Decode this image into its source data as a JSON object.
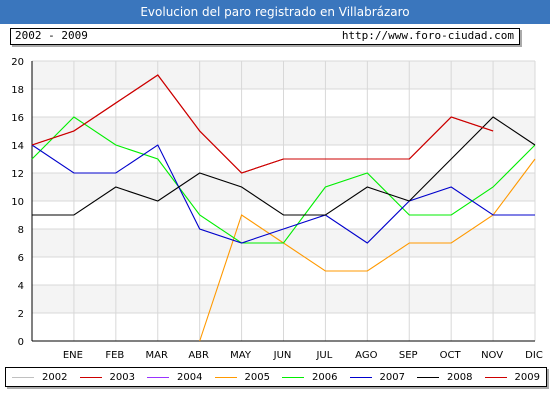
{
  "header": {
    "title": "Evolucion del paro registrado en Villabrázaro",
    "period": "2002 - 2009",
    "url": "http://www.foro-ciudad.com"
  },
  "chart_data": {
    "type": "line",
    "title": "Evolucion del paro registrado en Villabrázaro",
    "categories": [
      "ENE",
      "FEB",
      "MAR",
      "ABR",
      "MAY",
      "JUN",
      "JUL",
      "AGO",
      "SEP",
      "OCT",
      "NOV",
      "DIC"
    ],
    "y_ticks": [
      "0",
      "2",
      "4",
      "6",
      "8",
      "10",
      "12",
      "14",
      "16",
      "18",
      "20"
    ],
    "ylim": [
      0,
      20
    ],
    "grid": true,
    "legend_position": "bottom",
    "series": [
      {
        "name": "2002",
        "color": "#c0c0c0",
        "points": []
      },
      {
        "name": "2003",
        "color": "#cc0000",
        "points": [
          [
            0,
            14
          ],
          [
            1,
            15
          ],
          [
            2,
            17
          ],
          [
            3,
            19
          ],
          [
            4,
            15
          ],
          [
            5,
            12
          ],
          [
            6,
            13
          ],
          [
            7,
            13
          ],
          [
            8,
            13
          ],
          [
            9,
            13
          ],
          [
            10,
            16
          ],
          [
            11,
            15
          ]
        ]
      },
      {
        "name": "2004",
        "color": "#9933ff",
        "points": []
      },
      {
        "name": "2005",
        "color": "#ff9900",
        "points": [
          [
            4,
            0
          ],
          [
            5,
            9
          ],
          [
            6,
            7
          ],
          [
            7,
            5
          ],
          [
            8,
            5
          ],
          [
            9,
            7
          ],
          [
            10,
            7
          ],
          [
            11,
            9
          ],
          [
            12,
            13
          ]
        ]
      },
      {
        "name": "2006",
        "color": "#00ee00",
        "points": [
          [
            0,
            13
          ],
          [
            1,
            16
          ],
          [
            2,
            14
          ],
          [
            3,
            13
          ],
          [
            4,
            9
          ],
          [
            5,
            7
          ],
          [
            6,
            7
          ],
          [
            7,
            11
          ],
          [
            8,
            12
          ],
          [
            9,
            9
          ],
          [
            10,
            9
          ],
          [
            11,
            11
          ],
          [
            12,
            14
          ]
        ]
      },
      {
        "name": "2007",
        "color": "#0000cc",
        "points": [
          [
            0,
            14
          ],
          [
            1,
            12
          ],
          [
            2,
            12
          ],
          [
            3,
            14
          ],
          [
            4,
            8
          ],
          [
            5,
            7
          ],
          [
            6,
            8
          ],
          [
            7,
            9
          ],
          [
            8,
            7
          ],
          [
            9,
            10
          ],
          [
            10,
            11
          ],
          [
            11,
            9
          ],
          [
            12,
            9
          ]
        ]
      },
      {
        "name": "2008",
        "color": "#000000",
        "points": [
          [
            0,
            9
          ],
          [
            1,
            9
          ],
          [
            2,
            11
          ],
          [
            3,
            10
          ],
          [
            4,
            12
          ],
          [
            5,
            11
          ],
          [
            6,
            9
          ],
          [
            7,
            9
          ],
          [
            8,
            11
          ],
          [
            9,
            10
          ],
          [
            10,
            13
          ],
          [
            11,
            16
          ],
          [
            12,
            14
          ]
        ]
      },
      {
        "name": "2009",
        "color": "#cc0000",
        "points": [
          [
            0,
            14
          ],
          [
            1,
            15
          ],
          [
            2,
            17
          ],
          [
            3,
            19
          ],
          [
            4,
            15
          ],
          [
            5,
            12
          ],
          [
            6,
            13
          ],
          [
            7,
            13
          ],
          [
            8,
            13
          ],
          [
            9,
            13
          ],
          [
            10,
            16
          ],
          [
            11,
            15
          ]
        ]
      }
    ]
  }
}
